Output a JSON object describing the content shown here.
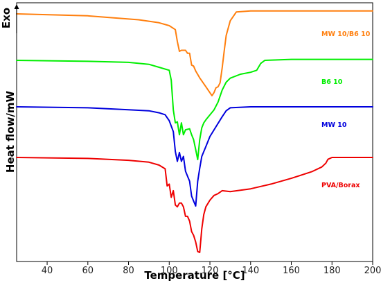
{
  "chart_data": {
    "type": "line",
    "xlabel": "Temperature [°C]",
    "ylabel": "Heat flow/mW",
    "exo_label": "Exo",
    "xlim": [
      25,
      200
    ],
    "xticks": [
      40,
      60,
      80,
      100,
      120,
      140,
      160,
      180,
      200
    ],
    "grid": false,
    "yticks_shown": false,
    "legend": "inline labels at right, one per curve",
    "series": [
      {
        "name": "MW 10/B6 10",
        "color": "#ff7f0e",
        "x": [
          25,
          60,
          85,
          95,
          100,
          103,
          104,
          105,
          106,
          108,
          109,
          110,
          111,
          112,
          113,
          115,
          118,
          120,
          121,
          122,
          123,
          124,
          125,
          126,
          127,
          128,
          130,
          133,
          140,
          160,
          200
        ],
        "y": [
          1.0,
          0.98,
          0.94,
          0.91,
          0.88,
          0.84,
          0.72,
          0.62,
          0.63,
          0.63,
          0.6,
          0.6,
          0.48,
          0.47,
          0.42,
          0.35,
          0.26,
          0.2,
          0.17,
          0.2,
          0.25,
          0.26,
          0.3,
          0.45,
          0.62,
          0.78,
          0.93,
          1.02,
          1.03,
          1.03,
          1.03
        ]
      },
      {
        "name": "B6 10",
        "color": "#00ee00",
        "x": [
          25,
          60,
          80,
          90,
          95,
          100,
          101,
          102,
          103,
          104,
          105,
          106,
          107,
          108,
          110,
          111,
          112,
          113,
          114,
          115,
          116,
          117,
          118,
          120,
          122,
          124,
          126,
          128,
          130,
          135,
          140,
          143,
          145,
          147,
          160,
          200
        ],
        "y": [
          1.0,
          0.99,
          0.98,
          0.96,
          0.93,
          0.9,
          0.8,
          0.5,
          0.37,
          0.38,
          0.25,
          0.37,
          0.25,
          0.3,
          0.31,
          0.25,
          0.2,
          0.1,
          0.0,
          0.2,
          0.32,
          0.37,
          0.4,
          0.45,
          0.5,
          0.58,
          0.7,
          0.78,
          0.82,
          0.86,
          0.88,
          0.9,
          0.97,
          1.0,
          1.01,
          1.01
        ]
      },
      {
        "name": "MW 10",
        "color": "#0000dd",
        "x": [
          25,
          60,
          80,
          90,
          95,
          98,
          100,
          102,
          103,
          104,
          105,
          106,
          107,
          108,
          110,
          111,
          112,
          113,
          114,
          115,
          116,
          118,
          120,
          123,
          126,
          128,
          130,
          140,
          160,
          200
        ],
        "y": [
          1.0,
          0.99,
          0.97,
          0.96,
          0.94,
          0.92,
          0.86,
          0.75,
          0.55,
          0.45,
          0.54,
          0.45,
          0.5,
          0.35,
          0.25,
          0.1,
          0.05,
          0.0,
          0.25,
          0.38,
          0.5,
          0.6,
          0.7,
          0.8,
          0.9,
          0.96,
          0.99,
          1.0,
          1.0,
          1.0
        ]
      },
      {
        "name": "PVA/Borax",
        "color": "#ee0000",
        "x": [
          25,
          60,
          80,
          90,
          95,
          98,
          99,
          100,
          101,
          102,
          103,
          104,
          105,
          106,
          107,
          108,
          109,
          110,
          111,
          112,
          113,
          114,
          115,
          116,
          117,
          118,
          120,
          122,
          124,
          126,
          130,
          140,
          150,
          160,
          170,
          175,
          177,
          178,
          180,
          200
        ],
        "y": [
          1.0,
          0.99,
          0.97,
          0.95,
          0.92,
          0.88,
          0.7,
          0.72,
          0.58,
          0.65,
          0.5,
          0.48,
          0.52,
          0.52,
          0.48,
          0.38,
          0.38,
          0.33,
          0.22,
          0.18,
          0.11,
          0.01,
          0.0,
          0.25,
          0.4,
          0.48,
          0.55,
          0.6,
          0.62,
          0.65,
          0.64,
          0.67,
          0.72,
          0.78,
          0.85,
          0.9,
          0.94,
          0.98,
          1.0,
          1.0
        ]
      }
    ]
  }
}
